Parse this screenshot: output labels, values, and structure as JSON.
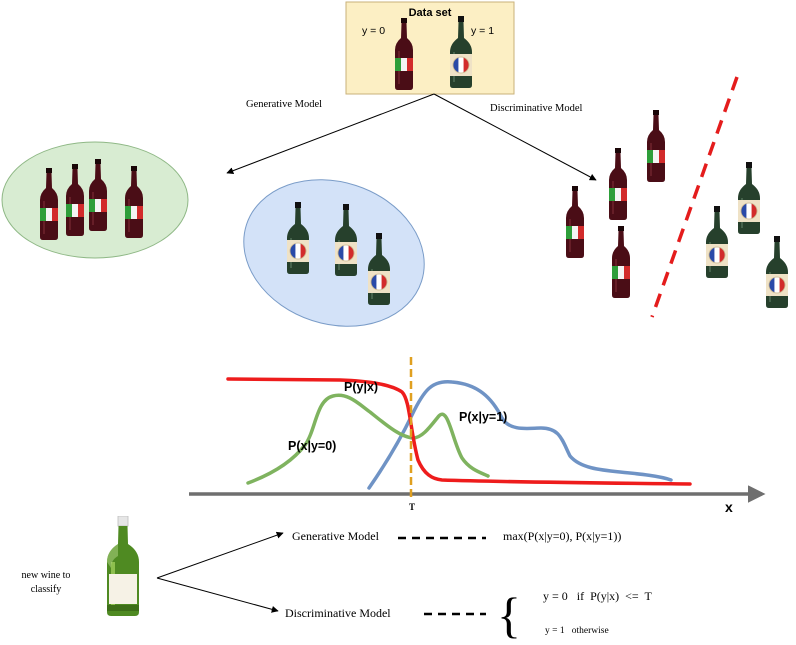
{
  "dataset": {
    "title": "Data set",
    "label_y0": "y = 0",
    "label_y1": "y = 1"
  },
  "branches": {
    "generative": "Generative Model",
    "discriminative": "Discriminative  Model"
  },
  "curves": {
    "posterior": "P(y|x)",
    "likelihood_y0": "P(x|y=0)",
    "likelihood_y1": "P(x|y=1)",
    "threshold": "T",
    "axis_x": "x"
  },
  "classify": {
    "new_wine_line1": "new wine to",
    "new_wine_line2": "classify",
    "generative_label": "Generative Model",
    "generative_rule": "max(P(x|y=0), P(x|y=1))",
    "discriminative_label": "Discriminative Model",
    "rule_line1": "y = 0   if  P(y|x)  <=  T",
    "rule_line2": "y = 1   otherwise"
  },
  "colors": {
    "dataset_box": "#fcefc4",
    "generative_cluster": "#d8ecd2",
    "french_cluster": "#d3e2f8",
    "red_curve": "#ee1c1c",
    "green_curve": "#7fb35f",
    "blue_curve": "#6f93c5",
    "threshold_line": "#e0a020",
    "axis": "#6f6f6f"
  },
  "icons": {
    "italian_bottle": "bottle-italian-icon",
    "french_bottle": "bottle-french-icon",
    "new_wine_bottle": "bottle-white-wine-icon"
  }
}
